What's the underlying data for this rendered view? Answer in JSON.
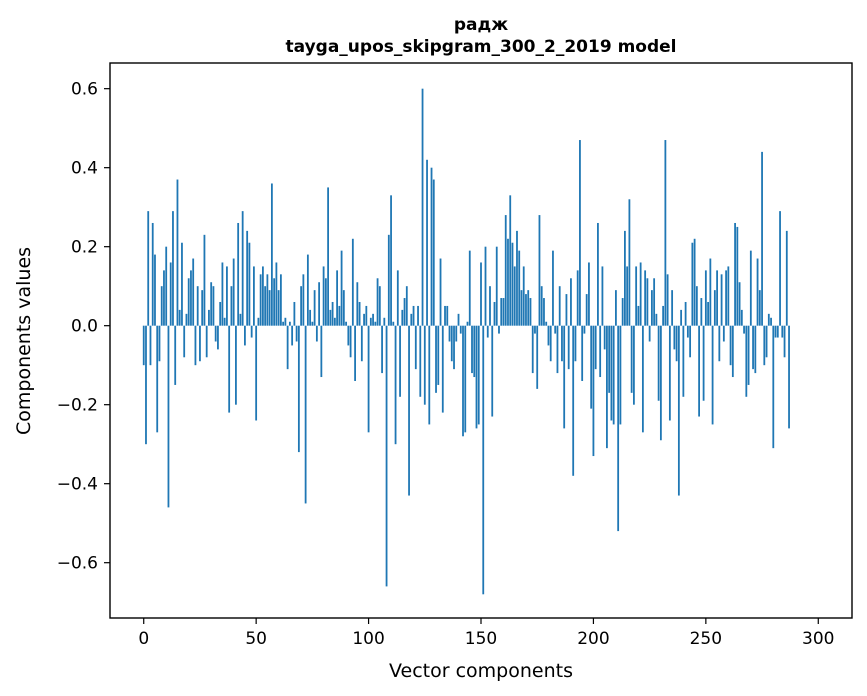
{
  "chart_data": {
    "type": "bar",
    "title": "радж",
    "subtitle": "tayga_upos_skipgram_300_2_2019 model",
    "xlabel": "Vector components",
    "ylabel": "Components values",
    "xlim": [
      -15,
      315
    ],
    "ylim": [
      -0.74,
      0.665
    ],
    "xticks": [
      0,
      50,
      100,
      150,
      200,
      250,
      300
    ],
    "yticks": [
      -0.6,
      -0.4,
      -0.2,
      0.0,
      0.2,
      0.4,
      0.6
    ],
    "xtick_labels": [
      "0",
      "50",
      "100",
      "150",
      "200",
      "250",
      "300"
    ],
    "ytick_labels": [
      "−0.6",
      "−0.4",
      "−0.2",
      "0.0",
      "0.2",
      "0.4",
      "0.6"
    ],
    "bar_color": "#1f77b4",
    "grid": false,
    "values": [
      -0.1,
      -0.3,
      0.29,
      -0.1,
      0.26,
      0.18,
      -0.27,
      -0.09,
      0.1,
      0.14,
      0.2,
      -0.46,
      0.16,
      0.29,
      -0.15,
      0.37,
      0.04,
      0.21,
      -0.08,
      0.03,
      0.12,
      0.14,
      0.17,
      -0.1,
      0.1,
      -0.09,
      0.09,
      0.23,
      -0.08,
      0.04,
      0.11,
      0.1,
      -0.04,
      -0.06,
      0.06,
      0.16,
      0.02,
      0.15,
      -0.22,
      0.1,
      0.17,
      -0.2,
      0.26,
      0.03,
      0.29,
      -0.05,
      0.24,
      0.21,
      -0.03,
      0.15,
      -0.24,
      0.02,
      0.13,
      0.15,
      0.1,
      0.13,
      0.09,
      0.36,
      0.12,
      0.16,
      0.09,
      0.13,
      0.01,
      0.02,
      -0.11,
      0.01,
      -0.05,
      0.06,
      -0.04,
      -0.32,
      0.1,
      0.13,
      -0.45,
      0.18,
      0.04,
      0.01,
      0.09,
      -0.04,
      0.11,
      -0.13,
      0.15,
      0.12,
      0.35,
      0.04,
      0.06,
      0.02,
      0.14,
      0.05,
      0.19,
      0.09,
      0.01,
      -0.05,
      -0.08,
      0.22,
      -0.14,
      0.11,
      0.06,
      -0.09,
      0.03,
      0.05,
      -0.27,
      0.02,
      0.03,
      0.01,
      0.12,
      0.1,
      -0.12,
      0.02,
      -0.66,
      0.23,
      0.33,
      0.01,
      -0.3,
      0.14,
      -0.18,
      0.04,
      0.07,
      0.1,
      -0.43,
      0.03,
      0.05,
      -0.11,
      0.05,
      -0.18,
      0.6,
      -0.2,
      0.42,
      -0.25,
      0.4,
      0.37,
      -0.17,
      -0.15,
      0.17,
      -0.22,
      0.05,
      0.05,
      -0.04,
      -0.09,
      -0.11,
      -0.04,
      0.03,
      -0.02,
      -0.28,
      -0.27,
      0.01,
      0.19,
      -0.12,
      -0.13,
      -0.26,
      -0.25,
      0.16,
      -0.68,
      0.2,
      -0.03,
      0.1,
      -0.23,
      0.06,
      0.2,
      -0.02,
      0.07,
      0.07,
      0.28,
      0.22,
      0.33,
      0.21,
      0.15,
      0.24,
      0.19,
      0.09,
      0.15,
      0.08,
      0.09,
      0.07,
      -0.12,
      -0.02,
      -0.16,
      0.28,
      0.1,
      0.07,
      0.01,
      -0.05,
      -0.09,
      0.19,
      -0.02,
      -0.12,
      0.1,
      -0.09,
      -0.26,
      0.08,
      -0.11,
      0.12,
      -0.38,
      -0.09,
      0.14,
      0.47,
      -0.14,
      -0.02,
      0.08,
      0.16,
      -0.21,
      -0.33,
      -0.11,
      0.26,
      -0.13,
      0.15,
      -0.06,
      -0.31,
      -0.17,
      -0.24,
      -0.25,
      0.09,
      -0.52,
      -0.25,
      0.07,
      0.24,
      0.15,
      0.32,
      -0.17,
      -0.2,
      0.15,
      0.05,
      0.16,
      -0.27,
      0.14,
      0.12,
      -0.04,
      0.09,
      0.12,
      0.03,
      -0.19,
      -0.29,
      0.05,
      0.47,
      0.13,
      -0.24,
      0.09,
      -0.06,
      -0.09,
      -0.43,
      0.04,
      -0.18,
      0.06,
      -0.03,
      -0.08,
      0.21,
      0.22,
      0.1,
      -0.23,
      0.07,
      -0.19,
      0.14,
      0.06,
      0.17,
      -0.25,
      0.09,
      0.14,
      -0.09,
      0.13,
      -0.04,
      0.14,
      0.15,
      -0.1,
      -0.13,
      0.26,
      0.25,
      0.11,
      0.04,
      -0.02,
      -0.18,
      -0.15,
      0.19,
      -0.11,
      -0.12,
      0.17,
      0.09,
      0.44,
      -0.1,
      -0.08,
      0.03,
      0.02,
      -0.31,
      -0.03,
      -0.03,
      0.29,
      -0.03,
      -0.08,
      0.24,
      -0.26
    ]
  }
}
